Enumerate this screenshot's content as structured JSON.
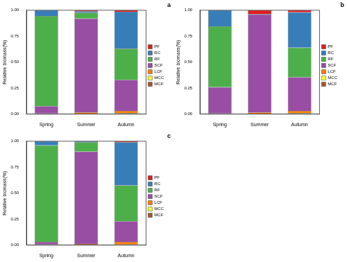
{
  "chart_data": [
    {
      "type": "bar",
      "title": "a",
      "y_label": "Relative biomass(%)",
      "categories": [
        "Spring",
        "Summer",
        "Autumn"
      ],
      "stacked": true,
      "grid": false,
      "legend": "right",
      "ylim": [
        0,
        1
      ],
      "yticks": [
        {
          "value": 0,
          "label": "0.00"
        },
        {
          "value": 0.25,
          "label": "0.25"
        },
        {
          "value": 0.5,
          "label": "0.50"
        },
        {
          "value": 0.75,
          "label": "0.75"
        },
        {
          "value": 1,
          "label": "1.00"
        }
      ],
      "series": [
        {
          "name": "MCF",
          "color": "#a65628",
          "values": [
            0,
            0,
            0.005
          ]
        },
        {
          "name": "MCC",
          "color": "#ffff33",
          "values": [
            0,
            0,
            0.005
          ]
        },
        {
          "name": "LCF",
          "color": "#ff7f00",
          "values": [
            0.005,
            0.015,
            0.02
          ]
        },
        {
          "name": "SCF",
          "color": "#984ea3",
          "values": [
            0.07,
            0.905,
            0.3
          ]
        },
        {
          "name": "RF",
          "color": "#4daf4a",
          "values": [
            0.87,
            0.055,
            0.3
          ]
        },
        {
          "name": "RC",
          "color": "#377eb8",
          "values": [
            0.055,
            0.015,
            0.355
          ]
        },
        {
          "name": "PF",
          "color": "#e41a1c",
          "values": [
            0,
            0.01,
            0.015
          ]
        }
      ]
    },
    {
      "type": "bar",
      "title": "b",
      "y_label": "Relative biomass(%)",
      "categories": [
        "Spring",
        "Summer",
        "Autumn"
      ],
      "stacked": true,
      "grid": false,
      "legend": "right",
      "ylim": [
        0,
        1
      ],
      "yticks": [
        {
          "value": 0,
          "label": "0.00"
        },
        {
          "value": 0.25,
          "label": "0.25"
        },
        {
          "value": 0.5,
          "label": "0.50"
        },
        {
          "value": 0.75,
          "label": "0.75"
        },
        {
          "value": 1,
          "label": "1.00"
        }
      ],
      "series": [
        {
          "name": "MCF",
          "color": "#a65628",
          "values": [
            0,
            0,
            0.005
          ]
        },
        {
          "name": "MCC",
          "color": "#ffff33",
          "values": [
            0,
            0,
            0.005
          ]
        },
        {
          "name": "LCF",
          "color": "#ff7f00",
          "values": [
            0.005,
            0.015,
            0.02
          ]
        },
        {
          "name": "SCF",
          "color": "#984ea3",
          "values": [
            0.255,
            0.945,
            0.325
          ]
        },
        {
          "name": "RF",
          "color": "#4daf4a",
          "values": [
            0.585,
            0,
            0.285
          ]
        },
        {
          "name": "RC",
          "color": "#377eb8",
          "values": [
            0.155,
            0.005,
            0.34
          ]
        },
        {
          "name": "PF",
          "color": "#e41a1c",
          "values": [
            0,
            0.035,
            0.02
          ]
        }
      ]
    },
    {
      "type": "bar",
      "title": "c",
      "y_label": "Relative biomass(%)",
      "categories": [
        "Spring",
        "Summer",
        "Autumn"
      ],
      "stacked": true,
      "grid": false,
      "legend": "right",
      "ylim": [
        0,
        1
      ],
      "yticks": [
        {
          "value": 0,
          "label": "0.00"
        },
        {
          "value": 0.25,
          "label": "0.25"
        },
        {
          "value": 0.5,
          "label": "0.50"
        },
        {
          "value": 0.75,
          "label": "0.75"
        },
        {
          "value": 1,
          "label": "1.00"
        }
      ],
      "series": [
        {
          "name": "MCF",
          "color": "#a65628",
          "values": [
            0,
            0,
            0.005
          ]
        },
        {
          "name": "MCC",
          "color": "#ffff33",
          "values": [
            0,
            0,
            0
          ]
        },
        {
          "name": "LCF",
          "color": "#ff7f00",
          "values": [
            0.005,
            0.01,
            0.025
          ]
        },
        {
          "name": "SCF",
          "color": "#984ea3",
          "values": [
            0.025,
            0.89,
            0.2
          ]
        },
        {
          "name": "RF",
          "color": "#4daf4a",
          "values": [
            0.93,
            0.09,
            0.345
          ]
        },
        {
          "name": "RC",
          "color": "#377eb8",
          "values": [
            0.04,
            0.01,
            0.415
          ]
        },
        {
          "name": "PF",
          "color": "#e41a1c",
          "values": [
            0,
            0,
            0.01
          ]
        }
      ]
    }
  ]
}
